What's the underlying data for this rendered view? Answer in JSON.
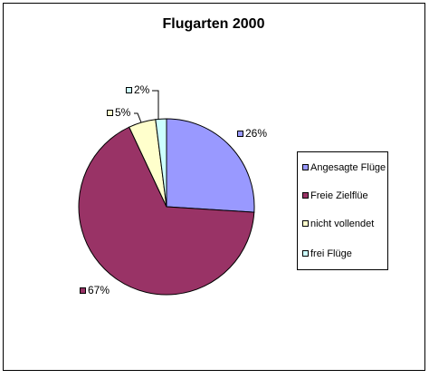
{
  "chart_data": {
    "type": "pie",
    "title": "Flugarten 2000",
    "categories": [
      "Angesagte Flüge",
      "Freie Zielflüe",
      "nicht vollendet",
      "frei Flüge"
    ],
    "values": [
      26,
      67,
      5,
      2
    ],
    "value_labels": [
      "26%",
      "67%",
      "5%",
      "2%"
    ],
    "colors": [
      "#9999ff",
      "#993366",
      "#ffffcc",
      "#ccffff"
    ],
    "legend": "right"
  }
}
